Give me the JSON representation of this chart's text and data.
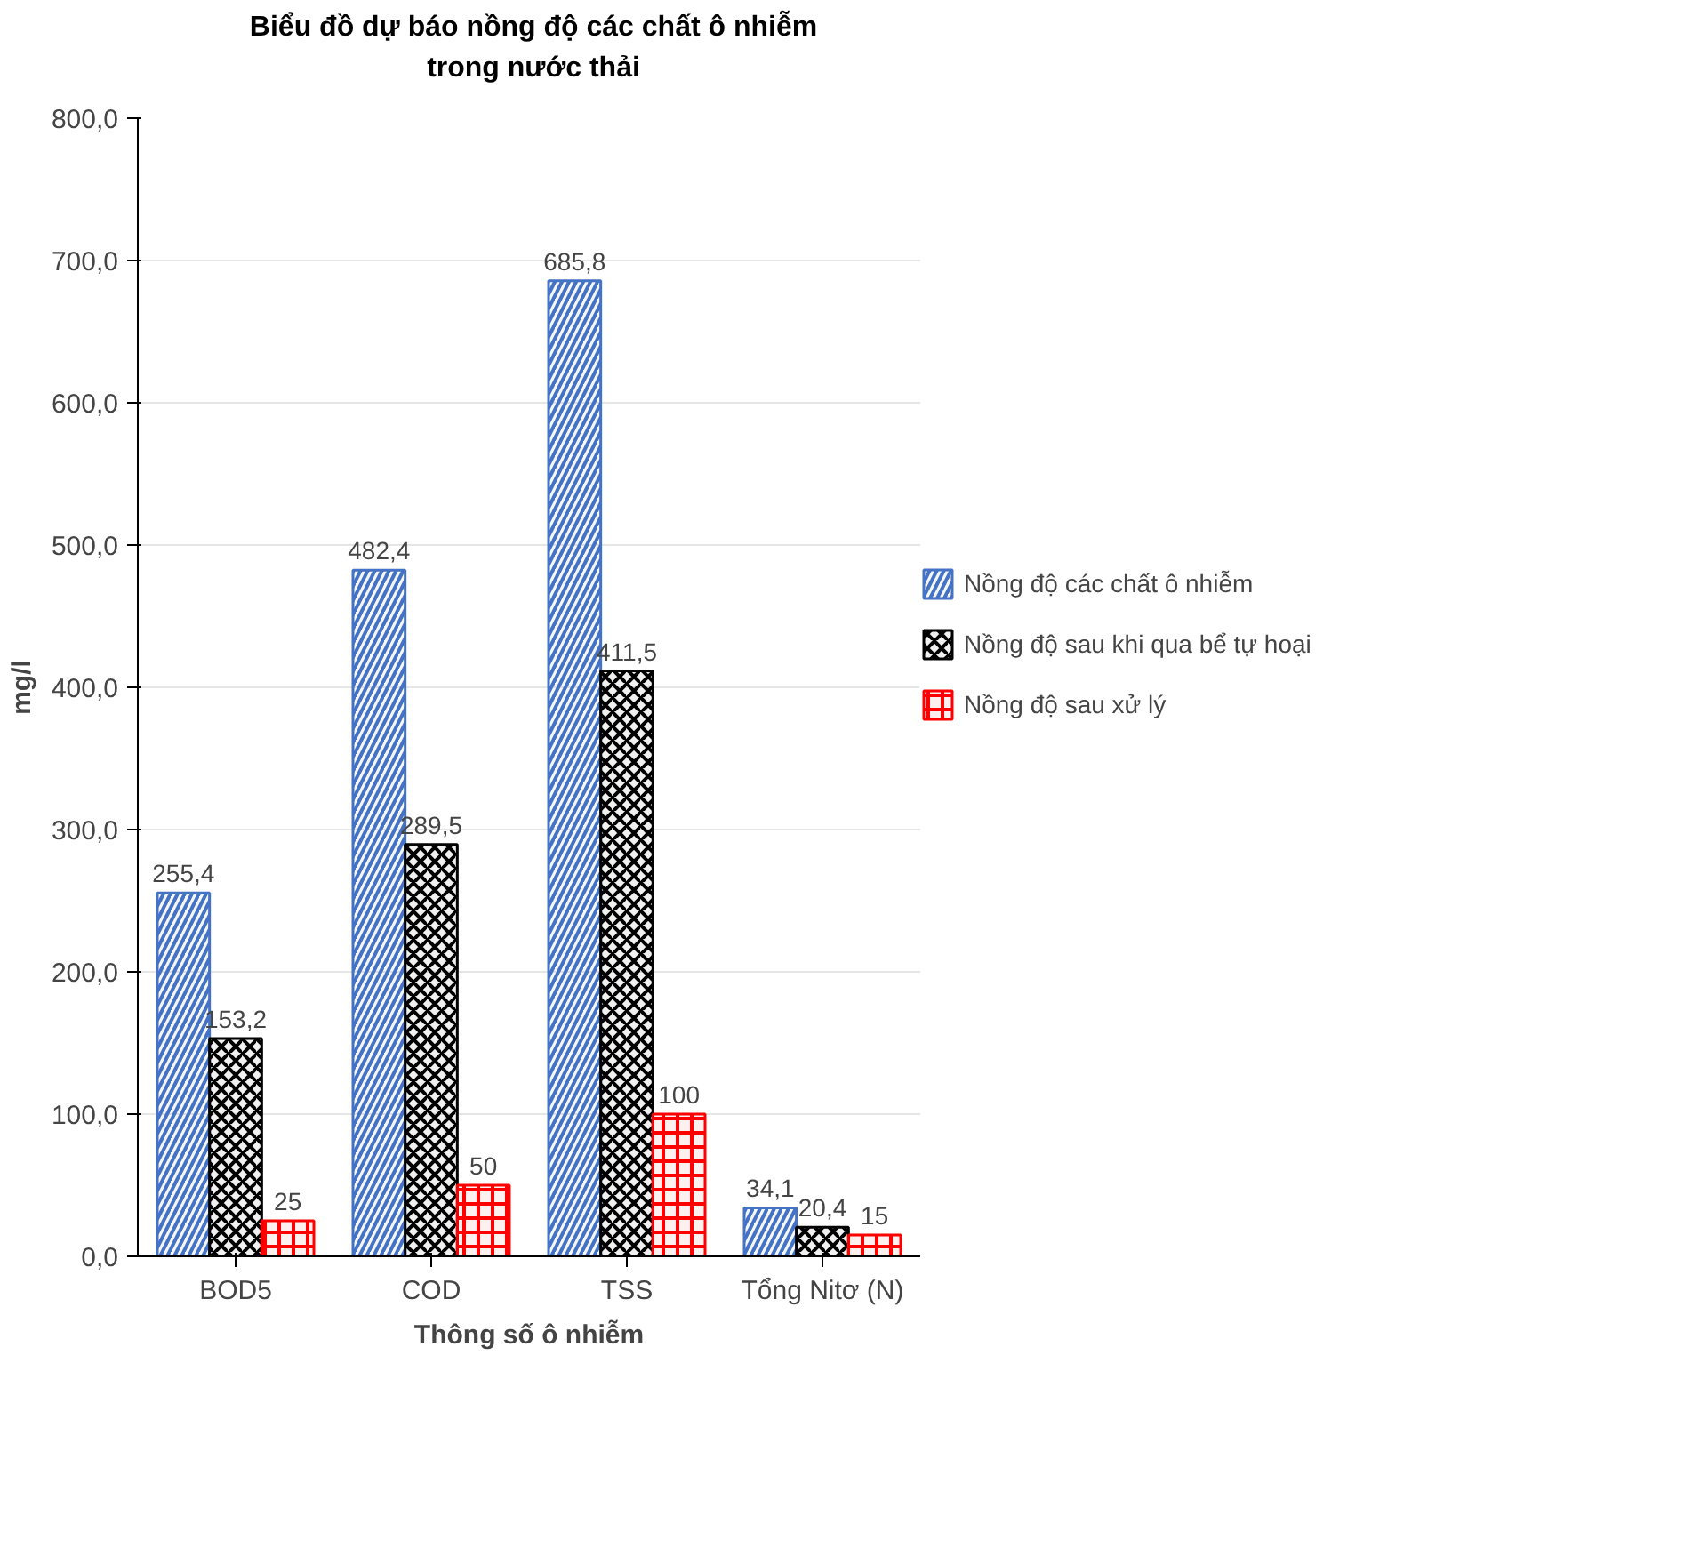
{
  "chart_data": {
    "type": "bar",
    "title": "Biểu đồ dự báo nồng độ các chất ô nhiễm\ntrong nước thải",
    "xlabel": "Thông số ô nhiễm",
    "ylabel": "mg/l",
    "categories": [
      "BOD5",
      "COD",
      "TSS",
      "Tổng Nitơ (N)"
    ],
    "series": [
      {
        "name": "Nồng độ các chất ô nhiễm",
        "color": "#4472c4",
        "values": [
          255.4,
          482.4,
          685.8,
          34.1
        ],
        "value_labels": [
          "255,4",
          "482,4",
          "685,8",
          "34,1"
        ]
      },
      {
        "name": "Nồng độ sau khi qua bể tự hoại",
        "color": "#000000",
        "values": [
          153.2,
          289.5,
          411.5,
          20.4
        ],
        "value_labels": [
          "153,2",
          "289,5",
          "411,5",
          "20,4"
        ]
      },
      {
        "name": "Nồng độ sau xử lý",
        "color": "#ff0000",
        "values": [
          25,
          50,
          100,
          15
        ],
        "value_labels": [
          "25",
          "50",
          "100",
          "15"
        ]
      }
    ],
    "ylim": [
      0,
      800
    ],
    "yticks": [
      {
        "value": 0,
        "label": "0,0"
      },
      {
        "value": 100,
        "label": "100,0"
      },
      {
        "value": 200,
        "label": "200,0"
      },
      {
        "value": 300,
        "label": "300,0"
      },
      {
        "value": 400,
        "label": "400,0"
      },
      {
        "value": 500,
        "label": "500,0"
      },
      {
        "value": 600,
        "label": "600,0"
      },
      {
        "value": 700,
        "label": "700,0"
      },
      {
        "value": 800,
        "label": "800,0"
      }
    ],
    "grid": "y",
    "legend": "right"
  }
}
